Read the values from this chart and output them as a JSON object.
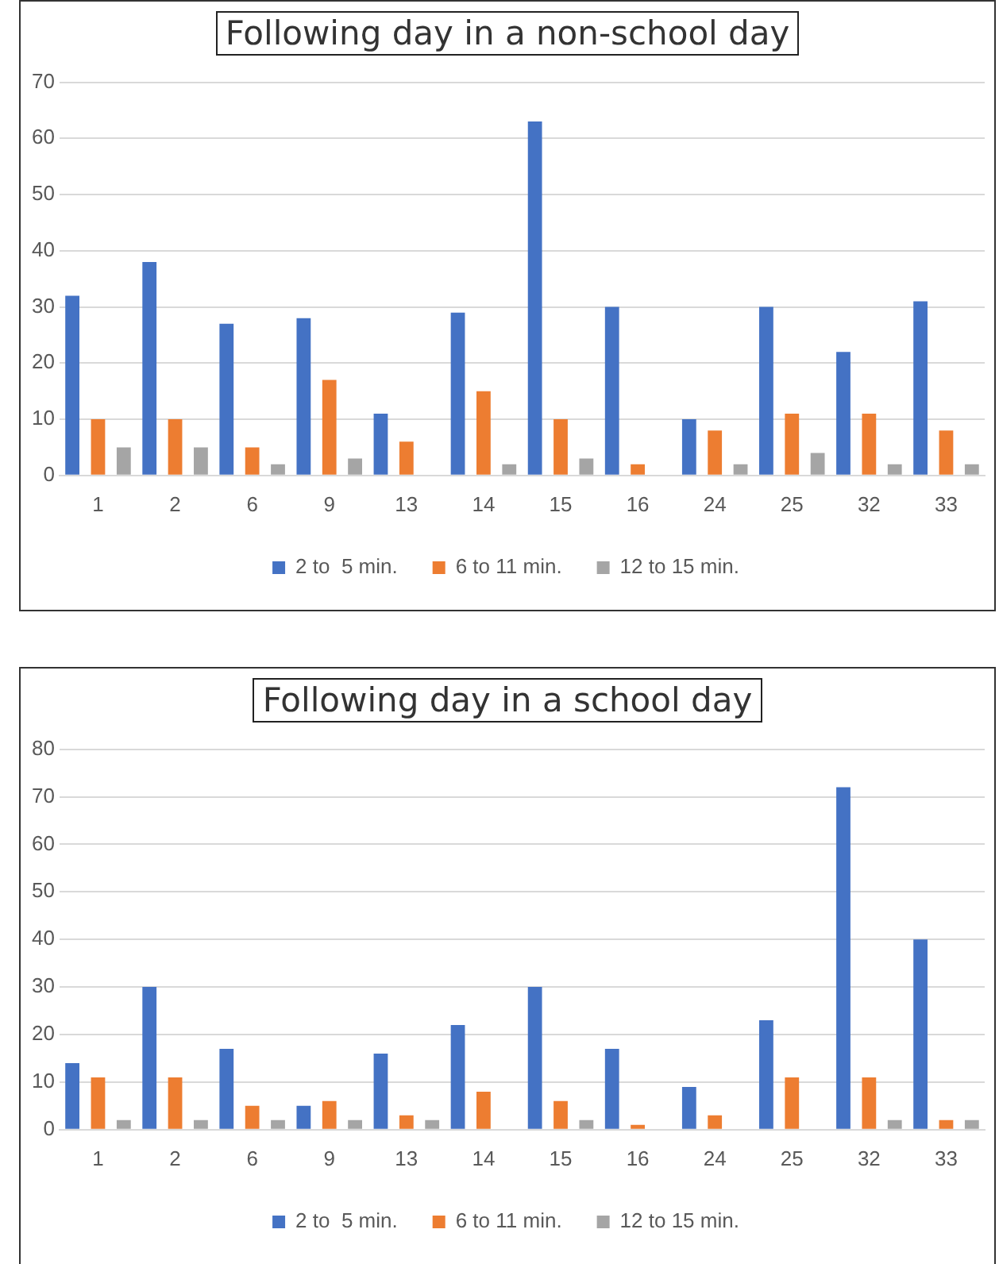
{
  "chart_data": [
    {
      "type": "bar",
      "title": "Following day in a non-school day",
      "categories": [
        "1",
        "2",
        "6",
        "9",
        "13",
        "14",
        "15",
        "16",
        "24",
        "25",
        "32",
        "33"
      ],
      "series": [
        {
          "name": "2 to  5 min.",
          "color": "#4472c4",
          "values": [
            32,
            38,
            27,
            28,
            11,
            29,
            63,
            30,
            10,
            30,
            22,
            31
          ]
        },
        {
          "name": "6 to 11 min.",
          "color": "#ed7d31",
          "values": [
            10,
            10,
            5,
            17,
            6,
            15,
            10,
            2,
            8,
            11,
            11,
            8
          ]
        },
        {
          "name": "12 to 15 min.",
          "color": "#a5a5a5",
          "values": [
            5,
            5,
            2,
            3,
            0,
            2,
            3,
            0,
            2,
            4,
            2,
            2
          ]
        }
      ],
      "ylim": [
        0,
        70
      ],
      "yticks": [
        0,
        10,
        20,
        30,
        40,
        50,
        60,
        70
      ],
      "grid": "y",
      "legend": "bottom"
    },
    {
      "type": "bar",
      "title": "Following day in a school day",
      "categories": [
        "1",
        "2",
        "6",
        "9",
        "13",
        "14",
        "15",
        "16",
        "24",
        "25",
        "32",
        "33"
      ],
      "series": [
        {
          "name": "2 to  5 min.",
          "color": "#4472c4",
          "values": [
            14,
            30,
            17,
            5,
            16,
            22,
            30,
            17,
            9,
            23,
            72,
            40
          ]
        },
        {
          "name": "6 to 11 min.",
          "color": "#ed7d31",
          "values": [
            11,
            11,
            5,
            6,
            3,
            8,
            6,
            1,
            3,
            11,
            11,
            2
          ]
        },
        {
          "name": "12 to 15 min.",
          "color": "#a5a5a5",
          "values": [
            2,
            2,
            2,
            2,
            2,
            0,
            2,
            0,
            0,
            0,
            2,
            2
          ]
        }
      ],
      "ylim": [
        0,
        80
      ],
      "yticks": [
        0,
        10,
        20,
        30,
        40,
        50,
        60,
        70,
        80
      ],
      "grid": "y",
      "legend": "bottom"
    }
  ]
}
